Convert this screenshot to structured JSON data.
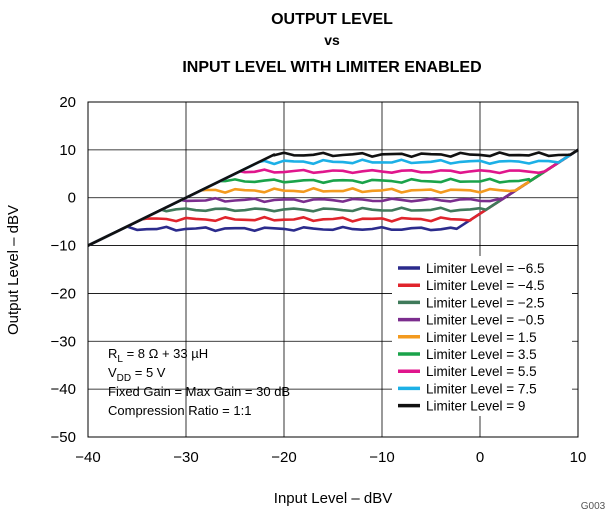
{
  "chart_data": {
    "type": "line",
    "title_lines": [
      "OUTPUT LEVEL",
      "vs",
      "INPUT LEVEL WITH LIMITER ENABLED"
    ],
    "xlabel": "Input Level – dBV",
    "ylabel": "Output Level – dBV",
    "xlim": [
      -40,
      10
    ],
    "ylim": [
      -50,
      20
    ],
    "x_ticks": [
      -40,
      -30,
      -20,
      -10,
      0,
      10
    ],
    "y_ticks": [
      -50,
      -40,
      -30,
      -20,
      -10,
      0,
      10,
      20
    ],
    "x_tick_labels": [
      "−40",
      "−30",
      "−20",
      "−10",
      "0",
      "10"
    ],
    "y_tick_labels": [
      "−50",
      "−40",
      "−30",
      "−20",
      "−10",
      "0",
      "10",
      "20"
    ],
    "grid": true,
    "legend_position": "lower-right",
    "figure_id": "G003",
    "annotations": [
      {
        "main": "R",
        "sub": "L",
        "rest": " = 8 Ω + 33 µH"
      },
      {
        "main": "V",
        "sub": "DD",
        "rest": " = 5 V"
      },
      {
        "main": "Fixed Gain = Max Gain = 30 dB",
        "sub": "",
        "rest": ""
      },
      {
        "main": "Compression Ratio = 1:1",
        "sub": "",
        "rest": ""
      }
    ],
    "series": [
      {
        "name": "Limiter Level = −6.5",
        "limit": -6.5,
        "color": "#2b2b8c"
      },
      {
        "name": "Limiter Level = −4.5",
        "limit": -4.5,
        "color": "#e0242c"
      },
      {
        "name": "Limiter Level = −2.5",
        "limit": -2.5,
        "color": "#3f7a5a"
      },
      {
        "name": "Limiter Level = −0.5",
        "limit": -0.5,
        "color": "#7b2d8e"
      },
      {
        "name": "Limiter Level = 1.5",
        "limit": 1.5,
        "color": "#f39a1e"
      },
      {
        "name": "Limiter Level = 3.5",
        "limit": 3.5,
        "color": "#1aa34a"
      },
      {
        "name": "Limiter Level = 5.5",
        "limit": 5.5,
        "color": "#e0168c"
      },
      {
        "name": "Limiter Level = 7.5",
        "limit": 7.5,
        "color": "#1cb0e6"
      },
      {
        "name": "Limiter Level = 9",
        "limit": 9,
        "color": "#111111"
      }
    ]
  }
}
